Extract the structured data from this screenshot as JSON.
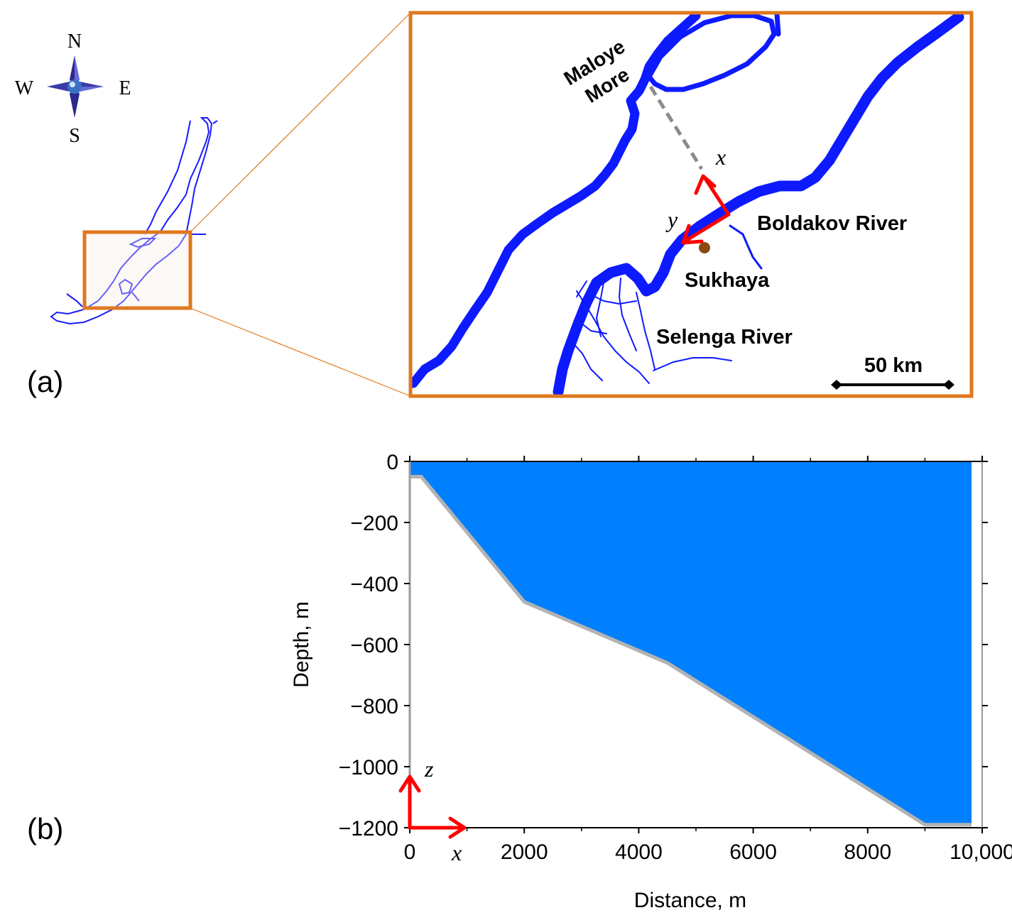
{
  "panels": {
    "a_label": "(a)",
    "b_label": "(b)"
  },
  "compass": {
    "icon": "compass-rose-icon",
    "north": "N",
    "south": "S",
    "east": "E",
    "west": "W"
  },
  "inset_map": {
    "labels": {
      "maloye_line1": "Maloye",
      "maloye_line2": "More",
      "boldakov": "Boldakov River",
      "sukhaya": "Sukhaya",
      "selenga": "Selenga River",
      "scale": "50 km"
    },
    "axes": {
      "x": "x",
      "y": "y"
    }
  },
  "colors": {
    "water": "#0d1aff",
    "inset_frame": "#e0781e",
    "arrow": "#ff0000",
    "profile_fill": "#0080ff",
    "seabed": "#b3b3b3",
    "marker": "#8b4a12"
  },
  "chart_data": {
    "type": "area",
    "title": "",
    "xlabel": "Distance, m",
    "ylabel": "Depth, m",
    "xlim": [
      0,
      10000
    ],
    "ylim": [
      -1200,
      0
    ],
    "x_ticks": [
      0,
      2000,
      4000,
      6000,
      8000,
      10000
    ],
    "x_tick_labels": [
      "0",
      "2000",
      "4000",
      "6000",
      "8000",
      "10,000"
    ],
    "y_ticks": [
      0,
      -200,
      -400,
      -600,
      -800,
      -1000,
      -1200
    ],
    "y_tick_labels": [
      "0",
      "−200",
      "−400",
      "−600",
      "−800",
      "−1000",
      "−1200"
    ],
    "bottom_profile": {
      "x": [
        0,
        200,
        2000,
        4500,
        9000,
        10000
      ],
      "y": [
        -50,
        -50,
        -460,
        -660,
        -1190,
        -1190
      ]
    },
    "axis_arrows": {
      "x": "x",
      "z": "z"
    }
  }
}
